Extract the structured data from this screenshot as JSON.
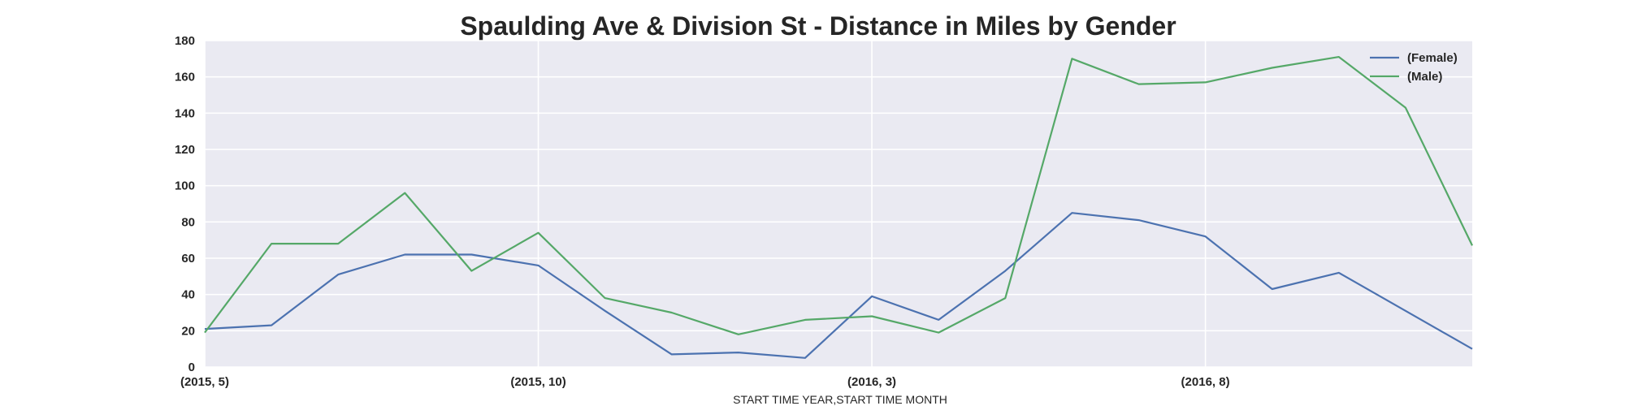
{
  "chart_data": {
    "type": "line",
    "title": "Spaulding Ave & Division St - Distance in Miles by Gender",
    "xlabel": "START TIME YEAR,START TIME MONTH",
    "ylabel": "",
    "ylim": [
      0,
      180
    ],
    "yticks": [
      0,
      20,
      40,
      60,
      80,
      100,
      120,
      140,
      160,
      180
    ],
    "x": [
      "(2015, 5)",
      "(2015, 6)",
      "(2015, 7)",
      "(2015, 8)",
      "(2015, 9)",
      "(2015, 10)",
      "(2015, 11)",
      "(2015, 12)",
      "(2016, 1)",
      "(2016, 2)",
      "(2016, 3)",
      "(2016, 4)",
      "(2016, 5)",
      "(2016, 6)",
      "(2016, 7)",
      "(2016, 8)",
      "(2016, 9)",
      "(2016, 10)",
      "(2016, 11)",
      "(2016, 12)"
    ],
    "xtick_labels": [
      "(2015, 5)",
      "(2015, 10)",
      "(2016, 3)",
      "(2016, 8)"
    ],
    "xtick_indices": [
      0,
      5,
      10,
      15
    ],
    "grid": true,
    "legend_position": "top-right",
    "background_color": "#EAEAF2",
    "series": [
      {
        "name": "(Female)",
        "color": "#4C72B0",
        "values": [
          21,
          23,
          51,
          62,
          62,
          56,
          31,
          7,
          8,
          5,
          39,
          26,
          53,
          85,
          81,
          72,
          43,
          52,
          31,
          10
        ]
      },
      {
        "name": "(Male)",
        "color": "#55A868",
        "values": [
          19,
          68,
          68,
          96,
          53,
          74,
          38,
          30,
          18,
          26,
          28,
          19,
          38,
          170,
          156,
          157,
          165,
          171,
          143,
          67
        ]
      }
    ]
  }
}
